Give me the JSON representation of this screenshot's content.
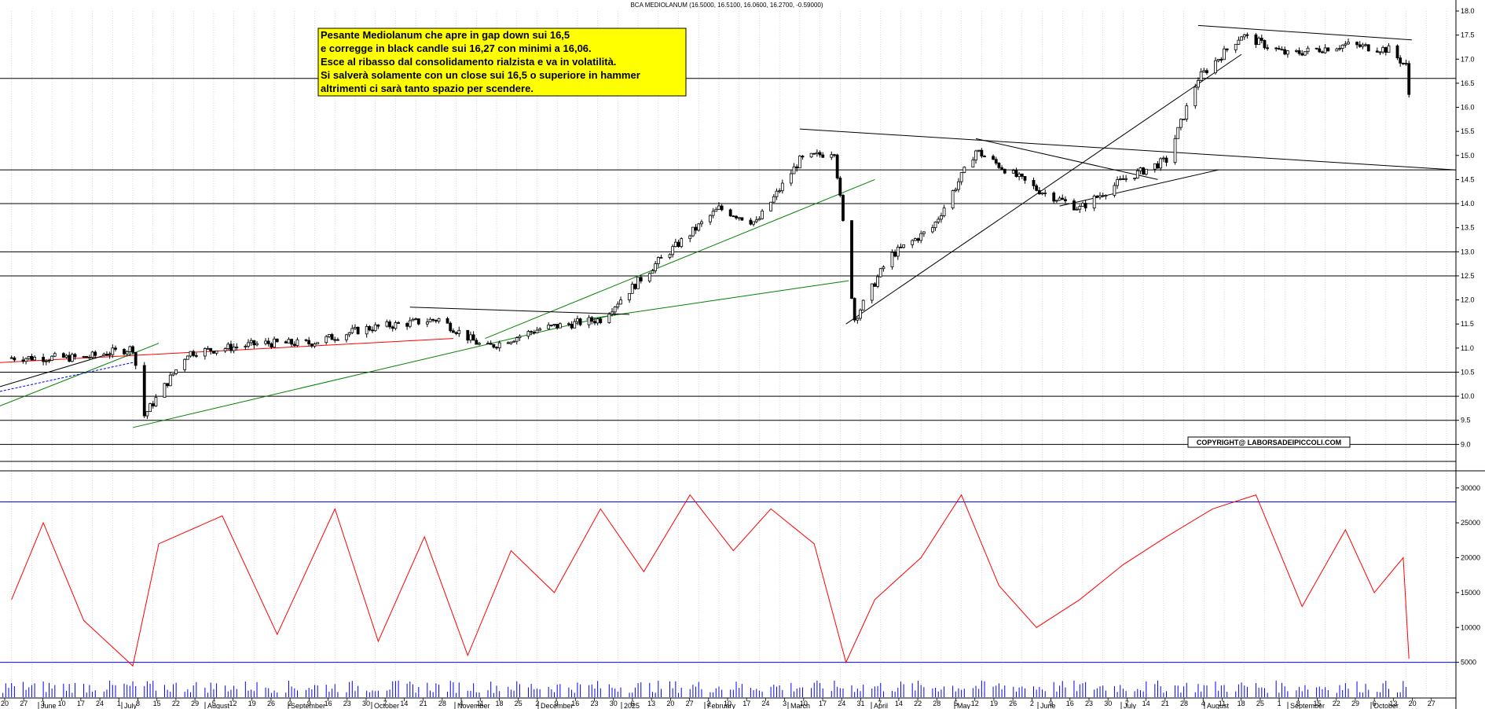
{
  "chart_data": {
    "type": "line",
    "title": "BCA MEDIOLANUM (16.5000, 16.5100, 16.0600, 16.2700, -0.59000)",
    "annotation": {
      "lines": [
        "Pesante Mediolanum che apre in gap down sui 16,5",
        "e corregge in black candle sui 16,27 con minimi a 16,06.",
        "Esce al ribasso dal consolidamento rialzista e va in volatilità.",
        "Si salverà solamente con un close sui 16,5 o superiore in hammer",
        "altrimenti  ci sarà tanto spazio per scendere."
      ],
      "background": "#ffff00"
    },
    "copyright": "COPYRIGHT@ LABORSADEIPICCOLI.COM",
    "price_axis": {
      "ylim": [
        8.5,
        18.0
      ],
      "ticks": [
        "9.0",
        "9.5",
        "10.0",
        "10.5",
        "11.0",
        "11.5",
        "12.0",
        "12.5",
        "13.0",
        "13.5",
        "14.0",
        "14.5",
        "15.0",
        "15.5",
        "16.0",
        "16.5",
        "17.0",
        "17.5",
        "18.0"
      ]
    },
    "volume_axis": {
      "ylim": [
        0,
        32000
      ],
      "ticks": [
        "5000",
        "10000",
        "15000",
        "20000",
        "25000",
        "30000"
      ]
    },
    "x_ticks": {
      "days": [
        "20",
        "27",
        "3",
        "10",
        "17",
        "24",
        "1",
        "8",
        "15",
        "22",
        "29",
        "5",
        "12",
        "19",
        "26",
        "2",
        "9",
        "16",
        "23",
        "30",
        "7",
        "14",
        "21",
        "28",
        "4",
        "11",
        "18",
        "25",
        "2",
        "9",
        "16",
        "23",
        "30",
        "6",
        "13",
        "20",
        "27",
        "3",
        "10",
        "17",
        "24",
        "3",
        "10",
        "17",
        "24",
        "31",
        "7",
        "14",
        "22",
        "28",
        "5",
        "12",
        "19",
        "26",
        "2",
        "9",
        "16",
        "23",
        "30",
        "7",
        "14",
        "21",
        "28",
        "4",
        "11",
        "18",
        "25",
        "1",
        "8",
        "15",
        "22",
        "29",
        "6",
        "13",
        "20",
        "27"
      ],
      "months": [
        "June",
        "July",
        "August",
        "September",
        "October",
        "November",
        "December",
        "2025",
        "February",
        "March",
        "April",
        "May",
        "June",
        "July",
        "August",
        "September",
        "October"
      ]
    },
    "price_series": {
      "name": "BCA MEDIOLANUM",
      "x": [
        "2024-06-20",
        "2024-07-15",
        "2024-08-01",
        "2024-08-05",
        "2024-08-20",
        "2024-09-15",
        "2024-10-01",
        "2024-10-20",
        "2024-11-15",
        "2024-12-01",
        "2024-12-20",
        "2025-01-10",
        "2025-01-30",
        "2025-02-20",
        "2025-03-05",
        "2025-03-20",
        "2025-04-01",
        "2025-04-08",
        "2025-04-20",
        "2025-05-05",
        "2025-05-20",
        "2025-06-10",
        "2025-06-25",
        "2025-07-10",
        "2025-07-25",
        "2025-08-05",
        "2025-08-20",
        "2025-09-05",
        "2025-09-25",
        "2025-10-10",
        "2025-10-16",
        "2025-10-17"
      ],
      "close": [
        10.8,
        10.8,
        11.0,
        9.6,
        10.9,
        11.1,
        11.1,
        11.4,
        11.6,
        11.0,
        11.4,
        11.6,
        12.8,
        13.9,
        13.6,
        14.9,
        15.1,
        11.6,
        12.9,
        13.5,
        15.1,
        14.3,
        13.9,
        14.5,
        14.9,
        16.6,
        17.5,
        17.1,
        17.3,
        17.2,
        16.86,
        16.27
      ]
    },
    "horizontal_levels": [
      9.0,
      9.5,
      10.0,
      10.5,
      12.5,
      13.0,
      14.0,
      14.7,
      16.6
    ],
    "volume_series": {
      "name": "",
      "x": [
        "2024-06-20",
        "2024-07-01",
        "2024-07-15",
        "2024-08-01",
        "2024-08-10",
        "2024-09-01",
        "2024-09-20",
        "2024-10-10",
        "2024-10-25",
        "2024-11-10",
        "2024-11-25",
        "2024-12-10",
        "2024-12-25",
        "2025-01-10",
        "2025-01-25",
        "2025-02-10",
        "2025-02-25",
        "2025-03-10",
        "2025-03-25",
        "2025-04-05",
        "2025-04-15",
        "2025-05-01",
        "2025-05-15",
        "2025-05-28",
        "2025-06-10",
        "2025-06-25",
        "2025-07-10",
        "2025-07-25",
        "2025-08-10",
        "2025-08-25",
        "2025-09-10",
        "2025-09-25",
        "2025-10-05",
        "2025-10-15",
        "2025-10-17"
      ],
      "values": [
        14000,
        25000,
        11000,
        4500,
        22000,
        26000,
        9000,
        27000,
        8000,
        23000,
        6000,
        21000,
        15000,
        27000,
        18000,
        29000,
        21000,
        27000,
        22000,
        5000,
        14000,
        20000,
        29000,
        16000,
        10000,
        14000,
        19000,
        23000,
        27000,
        29000,
        13000,
        24000,
        15000,
        20000,
        5500
      ]
    },
    "volume_levels": [
      5000,
      28000
    ],
    "colors": {
      "candle": "#000000",
      "volume_line": "#ff0000",
      "support_resistance": "#000000",
      "red_trendline": "#ff0000",
      "green_trendline": "#008000",
      "blue_guide": "#0000ff"
    }
  }
}
